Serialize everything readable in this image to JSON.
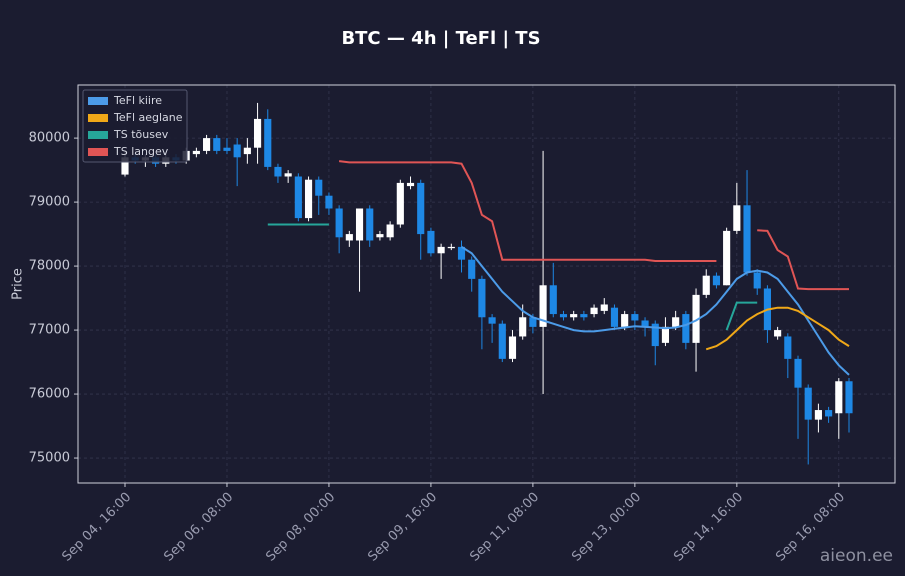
{
  "chart_data": {
    "type": "candlestick",
    "title": "BTC — 4h  |  TeFl  |  TS",
    "y_label": "Price",
    "watermark": "aieon.ee",
    "x": [
      "Sep 04, 16:00",
      "Sep 04, 20:00",
      "Sep 05, 00:00",
      "Sep 05, 04:00",
      "Sep 05, 08:00",
      "Sep 05, 12:00",
      "Sep 05, 16:00",
      "Sep 05, 20:00",
      "Sep 06, 00:00",
      "Sep 06, 04:00",
      "Sep 06, 08:00",
      "Sep 06, 12:00",
      "Sep 06, 16:00",
      "Sep 06, 20:00",
      "Sep 07, 00:00",
      "Sep 07, 04:00",
      "Sep 07, 08:00",
      "Sep 07, 12:00",
      "Sep 07, 16:00",
      "Sep 07, 20:00",
      "Sep 08, 00:00",
      "Sep 08, 04:00",
      "Sep 08, 08:00",
      "Sep 08, 12:00",
      "Sep 08, 16:00",
      "Sep 08, 20:00",
      "Sep 09, 00:00",
      "Sep 09, 04:00",
      "Sep 09, 08:00",
      "Sep 09, 12:00",
      "Sep 09, 16:00",
      "Sep 09, 20:00",
      "Sep 10, 00:00",
      "Sep 10, 04:00",
      "Sep 10, 08:00",
      "Sep 10, 12:00",
      "Sep 10, 16:00",
      "Sep 10, 20:00",
      "Sep 11, 00:00",
      "Sep 11, 04:00",
      "Sep 11, 08:00",
      "Sep 11, 12:00",
      "Sep 11, 16:00",
      "Sep 11, 20:00",
      "Sep 12, 00:00",
      "Sep 12, 04:00",
      "Sep 12, 08:00",
      "Sep 12, 12:00",
      "Sep 12, 16:00",
      "Sep 12, 20:00",
      "Sep 13, 00:00",
      "Sep 13, 04:00",
      "Sep 13, 08:00",
      "Sep 13, 12:00",
      "Sep 13, 16:00",
      "Sep 13, 20:00",
      "Sep 14, 00:00",
      "Sep 14, 04:00",
      "Sep 14, 08:00",
      "Sep 14, 12:00",
      "Sep 14, 16:00",
      "Sep 14, 20:00",
      "Sep 15, 00:00",
      "Sep 15, 04:00",
      "Sep 15, 08:00",
      "Sep 15, 12:00",
      "Sep 15, 16:00",
      "Sep 15, 20:00",
      "Sep 16, 00:00",
      "Sep 16, 04:00",
      "Sep 16, 08:00",
      "Sep 16, 12:00"
    ],
    "open": [
      79430,
      79700,
      79650,
      79700,
      79600,
      79700,
      79650,
      79750,
      79800,
      80000,
      79850,
      79900,
      79750,
      79850,
      80300,
      79550,
      79400,
      79400,
      78750,
      79350,
      79100,
      78900,
      78400,
      78400,
      78900,
      78450,
      78450,
      78650,
      79250,
      79300,
      78550,
      78200,
      78280,
      78300,
      78100,
      77800,
      77200,
      77100,
      76550,
      76900,
      77200,
      77050,
      77700,
      77250,
      77200,
      77250,
      77250,
      77300,
      77350,
      77050,
      77250,
      77150,
      77100,
      76800,
      77050,
      77250,
      76800,
      77550,
      77850,
      77700,
      78550,
      78950,
      77900,
      77650,
      76900,
      76900,
      76550,
      76100,
      75600,
      75750,
      75700,
      76200
    ],
    "high": [
      79800,
      79750,
      79750,
      79750,
      79750,
      79750,
      79850,
      79850,
      80050,
      80050,
      80000,
      80000,
      80000,
      80550,
      80450,
      79600,
      79500,
      79450,
      79400,
      79400,
      79150,
      78950,
      78550,
      78900,
      78950,
      78550,
      78700,
      79350,
      79400,
      79350,
      78600,
      78350,
      78350,
      78400,
      78150,
      77850,
      77250,
      77150,
      77000,
      77400,
      77250,
      79800,
      78050,
      77300,
      77300,
      77300,
      77400,
      77500,
      77400,
      77300,
      77300,
      77200,
      77150,
      77200,
      77300,
      77300,
      77650,
      77950,
      77900,
      78600,
      79300,
      79500,
      77950,
      77700,
      77050,
      76950,
      76600,
      76150,
      75850,
      75800,
      76250,
      76250
    ],
    "low": [
      79400,
      79600,
      79550,
      79550,
      79550,
      79600,
      79600,
      79700,
      79750,
      79750,
      79750,
      79250,
      79600,
      79600,
      79500,
      79300,
      79300,
      78700,
      78700,
      78800,
      78800,
      78200,
      78300,
      77600,
      78300,
      78400,
      78400,
      78600,
      79200,
      78100,
      78150,
      77800,
      78250,
      77900,
      77600,
      76700,
      76800,
      76500,
      76500,
      76850,
      76950,
      76000,
      77200,
      77150,
      77150,
      77150,
      77200,
      77250,
      77000,
      77000,
      77000,
      76900,
      76450,
      76750,
      77000,
      76700,
      76350,
      77500,
      77650,
      77700,
      78500,
      77850,
      77550,
      76800,
      76850,
      76250,
      75300,
      74900,
      75400,
      75550,
      75300,
      75400
    ],
    "close": [
      79700,
      79650,
      79700,
      79600,
      79700,
      79650,
      79800,
      79800,
      80000,
      79800,
      79800,
      79700,
      79850,
      80300,
      79550,
      79400,
      79450,
      78750,
      79350,
      79100,
      78900,
      78450,
      78500,
      78900,
      78400,
      78500,
      78650,
      79300,
      79300,
      78500,
      78200,
      78300,
      78300,
      78100,
      77800,
      77200,
      77100,
      76550,
      76900,
      77200,
      77050,
      77700,
      77250,
      77200,
      77250,
      77200,
      77350,
      77400,
      77050,
      77250,
      77150,
      77050,
      76750,
      77050,
      77200,
      76800,
      77550,
      77850,
      77700,
      78550,
      78950,
      77900,
      77650,
      77000,
      77000,
      76550,
      76100,
      75600,
      75750,
      75650,
      76200,
      75700
    ],
    "up_color": "#ffffff",
    "down_color": "#1e88e5",
    "series": [
      {
        "name": "TeFl kiire",
        "color": "#4c9be8",
        "values": [
          null,
          null,
          null,
          null,
          null,
          null,
          null,
          null,
          null,
          null,
          null,
          null,
          null,
          null,
          null,
          null,
          null,
          null,
          null,
          null,
          null,
          null,
          null,
          null,
          null,
          null,
          null,
          null,
          null,
          null,
          null,
          null,
          null,
          78300,
          78200,
          78000,
          77800,
          77600,
          77450,
          77300,
          77200,
          77150,
          77100,
          77050,
          77000,
          76980,
          76980,
          77000,
          77020,
          77040,
          77060,
          77050,
          77040,
          77030,
          77040,
          77080,
          77150,
          77250,
          77400,
          77600,
          77800,
          77900,
          77930,
          77900,
          77800,
          77600,
          77400,
          77150,
          76900,
          76650,
          76450,
          76300
        ]
      },
      {
        "name": "TeFl aeglane",
        "color": "#f0a818",
        "values": [
          null,
          null,
          null,
          null,
          null,
          null,
          null,
          null,
          null,
          null,
          null,
          null,
          null,
          null,
          null,
          null,
          null,
          null,
          null,
          null,
          null,
          null,
          null,
          null,
          null,
          null,
          null,
          null,
          null,
          null,
          null,
          null,
          null,
          null,
          null,
          null,
          null,
          null,
          null,
          null,
          null,
          null,
          null,
          null,
          null,
          null,
          null,
          null,
          null,
          null,
          null,
          null,
          null,
          null,
          null,
          null,
          null,
          76700,
          76750,
          76850,
          77000,
          77150,
          77250,
          77320,
          77350,
          77350,
          77300,
          77200,
          77100,
          77000,
          76850,
          76750
        ]
      },
      {
        "name": "TS tõusev",
        "color": "#26a69a",
        "values": [
          null,
          null,
          null,
          null,
          null,
          null,
          null,
          null,
          null,
          null,
          null,
          null,
          null,
          null,
          78650,
          78650,
          78650,
          78650,
          78650,
          78650,
          78650,
          null,
          null,
          null,
          null,
          null,
          null,
          null,
          null,
          null,
          null,
          null,
          null,
          null,
          null,
          null,
          null,
          null,
          null,
          null,
          null,
          null,
          null,
          null,
          null,
          null,
          null,
          null,
          null,
          null,
          null,
          null,
          null,
          null,
          null,
          null,
          null,
          null,
          null,
          77000,
          77430,
          77430,
          77430,
          null,
          null,
          null,
          null,
          null,
          null,
          null,
          null,
          null
        ]
      },
      {
        "name": "TS langev",
        "color": "#e05555",
        "values": [
          null,
          null,
          null,
          null,
          null,
          null,
          null,
          null,
          null,
          null,
          null,
          null,
          null,
          null,
          null,
          null,
          null,
          null,
          null,
          null,
          null,
          79640,
          79620,
          79620,
          79620,
          79620,
          79620,
          79620,
          79620,
          79620,
          79620,
          79620,
          79620,
          79600,
          79300,
          78800,
          78700,
          78100,
          78100,
          78100,
          78100,
          78100,
          78100,
          78100,
          78100,
          78100,
          78100,
          78100,
          78100,
          78100,
          78100,
          78100,
          78080,
          78080,
          78080,
          78080,
          78080,
          78080,
          78080,
          null,
          null,
          null,
          78560,
          78550,
          78250,
          78150,
          77650,
          77640,
          77640,
          77640,
          77640,
          77640
        ]
      }
    ],
    "ylim": [
      74610,
      80830
    ],
    "yticks": [
      75000,
      76000,
      77000,
      78000,
      79000,
      80000
    ],
    "xticks": [
      "Sep 04, 16:00",
      "Sep 06, 08:00",
      "Sep 08, 00:00",
      "Sep 09, 16:00",
      "Sep 11, 08:00",
      "Sep 13, 00:00",
      "Sep 14, 16:00",
      "Sep 16, 08:00"
    ],
    "grid": true,
    "legend": "upper left"
  }
}
